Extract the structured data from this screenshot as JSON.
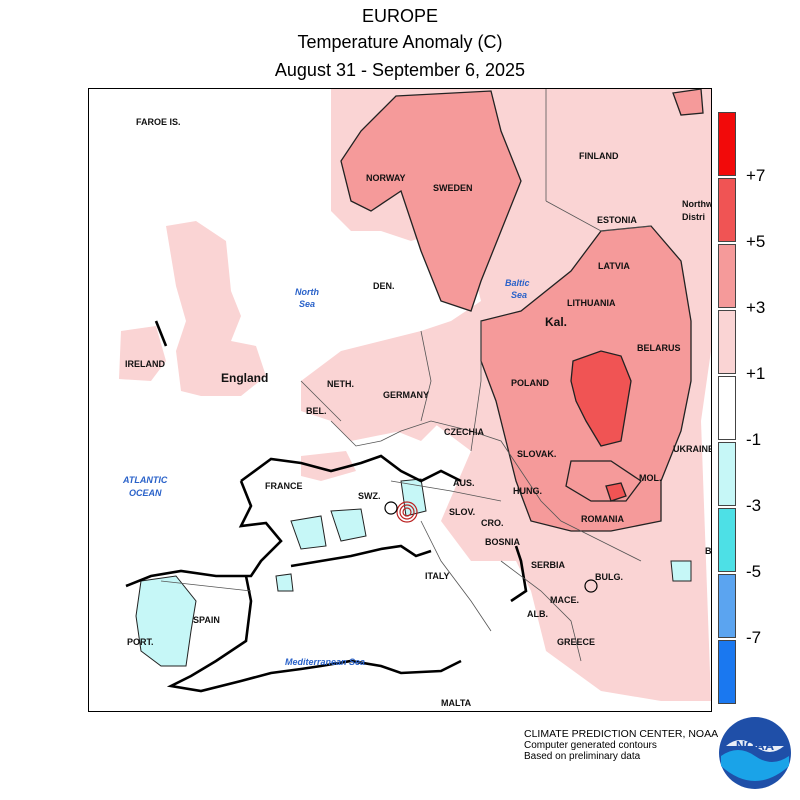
{
  "titles": {
    "region": "EUROPE",
    "variable": "Temperature Anomaly (C)",
    "period": "August 31 - September 6, 2025"
  },
  "legend": {
    "ticks": [
      "+7",
      "+5",
      "+3",
      "+1",
      "-1",
      "-3",
      "-5",
      "-7"
    ],
    "colors": [
      "#f20a0a",
      "#f05454",
      "#f59a9a",
      "#fad4d4",
      "#ffffff",
      "#c6f7f7",
      "#4de0e6",
      "#5ba4f0",
      "#1a78f0"
    ]
  },
  "labels": {
    "faroe": "FAROE IS.",
    "norway": "NORWAY",
    "sweden": "SWEDEN",
    "finland": "FINLAND",
    "estonia": "ESTONIA",
    "northwest": "Northw",
    "district": "Distri",
    "latvia": "LATVIA",
    "lithuania": "LITHUANIA",
    "kal": "Kal.",
    "belarus": "BELARUS",
    "den": "DEN.",
    "ireland": "IRELAND",
    "england": "England",
    "neth": "NETH.",
    "germany": "GERMANY",
    "poland": "POLAND",
    "bel": "BEL.",
    "czechia": "CZECHIA",
    "ukraine": "UKRAINE",
    "slovak": "SLOVAK.",
    "france": "FRANCE",
    "swz": "SWZ.",
    "aus": "AUS.",
    "hung": "HUNG.",
    "mol": "MOL.",
    "slov": "SLOV.",
    "cro": "CRO.",
    "romania": "ROMANIA",
    "bosnia": "BOSNIA",
    "serbia": "SERBIA",
    "italy": "ITALY",
    "bulg": "BULG.",
    "mace": "MACE.",
    "alb": "ALB.",
    "spain": "SPAIN",
    "port": "PORT.",
    "greece": "GREECE",
    "malta": "MALTA",
    "b": "B"
  },
  "seas": {
    "north1": "North",
    "north2": "Sea",
    "baltic1": "Baltic",
    "baltic2": "Sea",
    "atlantic1": "ATLANTIC",
    "atlantic2": "OCEAN",
    "med": "Mediterranean Sea"
  },
  "credit": {
    "line1": "CLIMATE PREDICTION CENTER, NOAA",
    "line2": "Computer generated contours",
    "line3": "Based on preliminary data"
  },
  "logo": {
    "text": "NOAA"
  },
  "icons": {
    "logo": "noaa-logo-icon"
  }
}
